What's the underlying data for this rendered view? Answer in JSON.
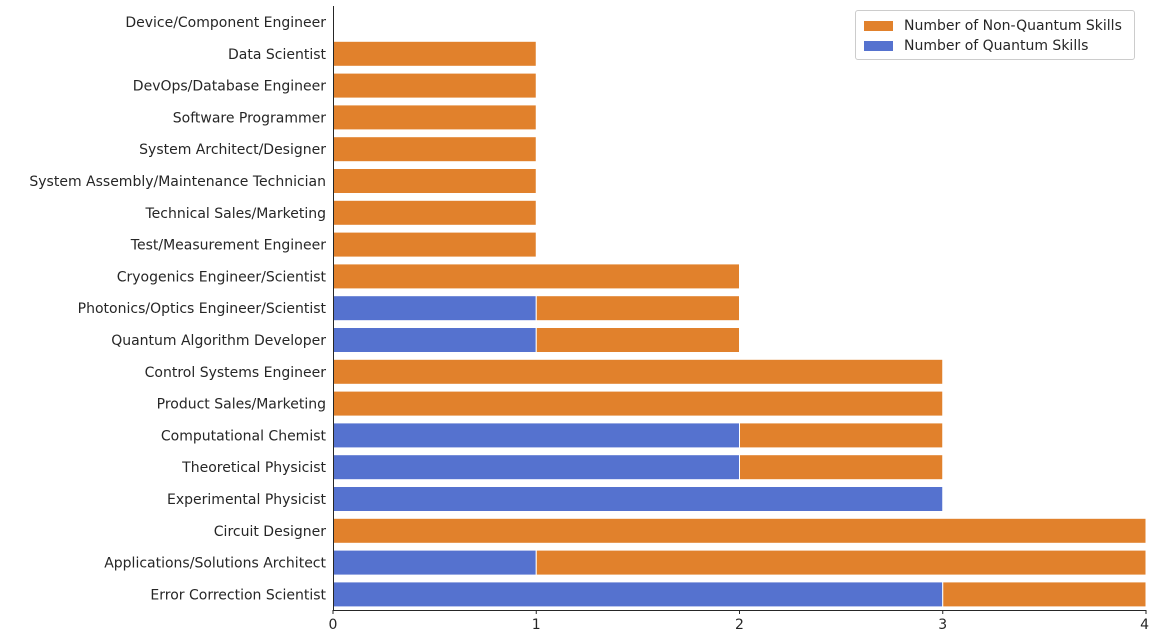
{
  "chart_data": {
    "type": "bar",
    "orientation": "horizontal",
    "stacked": true,
    "title": "",
    "xlabel": "",
    "ylabel": "",
    "xlim": [
      0,
      4
    ],
    "x_ticks": [
      "0",
      "1",
      "2",
      "3",
      "4"
    ],
    "grid": false,
    "legend_placement": "top-right",
    "categories": [
      "Device/Component Engineer",
      "Data Scientist",
      "DevOps/Database Engineer",
      "Software Programmer",
      "System Architect/Designer",
      "System Assembly/Maintenance Technician",
      "Technical Sales/Marketing",
      "Test/Measurement Engineer",
      "Cryogenics Engineer/Scientist",
      "Photonics/Optics Engineer/Scientist",
      "Quantum Algorithm Developer",
      "Control Systems Engineer",
      "Product Sales/Marketing",
      "Computational Chemist",
      "Theoretical Physicist",
      "Experimental Physicist",
      "Circuit Designer",
      "Applications/Solutions Architect",
      "Error Correction Scientist"
    ],
    "series": [
      {
        "name": "Number of Quantum Skills",
        "color": "#5572cf",
        "values": [
          0,
          0,
          0,
          0,
          0,
          0,
          0,
          0,
          0,
          1,
          1,
          0,
          0,
          2,
          2,
          3,
          0,
          1,
          3
        ]
      },
      {
        "name": "Number of Non-Quantum Skills",
        "color": "#e1812c",
        "values": [
          0,
          1,
          1,
          1,
          1,
          1,
          1,
          1,
          2,
          1,
          1,
          3,
          3,
          1,
          1,
          0,
          4,
          3,
          1
        ]
      }
    ]
  }
}
